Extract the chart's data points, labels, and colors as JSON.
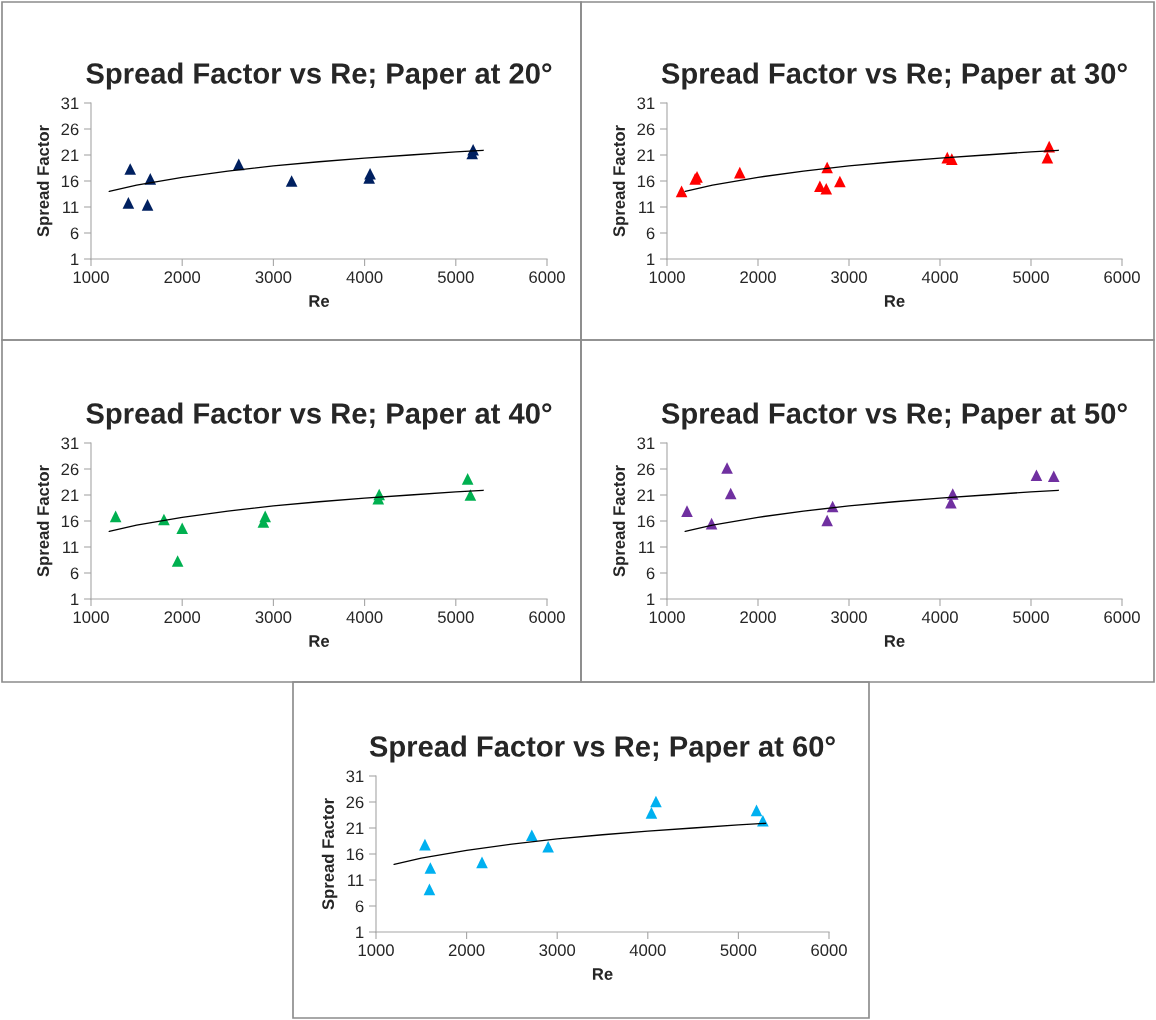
{
  "chart_data": [
    {
      "type": "scatter",
      "title": "Spread Factor vs Re; Paper at 20°",
      "xlabel": "Re",
      "ylabel": "Spread Factor",
      "xlim": [
        1000,
        6000
      ],
      "xticks": [
        1000,
        2000,
        3000,
        4000,
        5000,
        6000
      ],
      "ylim": [
        1,
        31
      ],
      "yticks": [
        1,
        6,
        11,
        16,
        21,
        26,
        31
      ],
      "grid": false,
      "legend": false,
      "marker": "triangle",
      "series": [
        {
          "color": "#002060",
          "x": [
            1410,
            1430,
            1620,
            1650,
            2620,
            3200,
            4050,
            4060,
            5180,
            5190
          ],
          "values": [
            11.8,
            18.3,
            11.4,
            16.4,
            19.2,
            16.0,
            16.6,
            17.4,
            21.3,
            22.0
          ]
        },
        {
          "type": "line",
          "color": "#000000",
          "marker": "none",
          "line_style": "solid",
          "x": [
            1200,
            1500,
            2000,
            2500,
            3000,
            3500,
            4000,
            4500,
            5000,
            5300
          ],
          "values": [
            14.0,
            15.2,
            16.7,
            17.9,
            18.9,
            19.7,
            20.4,
            21.0,
            21.6,
            21.9
          ]
        }
      ]
    },
    {
      "type": "scatter",
      "title": "Spread Factor vs Re; Paper at 30°",
      "xlabel": "Re",
      "ylabel": "Spread Factor",
      "xlim": [
        1000,
        6000
      ],
      "xticks": [
        1000,
        2000,
        3000,
        4000,
        5000,
        6000
      ],
      "ylim": [
        1,
        31
      ],
      "yticks": [
        1,
        6,
        11,
        16,
        21,
        26,
        31
      ],
      "grid": false,
      "legend": false,
      "marker": "triangle",
      "series": [
        {
          "color": "#ff0000",
          "x": [
            1160,
            1310,
            1330,
            1800,
            2680,
            2750,
            2760,
            2900,
            4080,
            4130,
            5180,
            5200
          ],
          "values": [
            14.0,
            16.4,
            16.8,
            17.6,
            15.0,
            14.5,
            18.6,
            15.9,
            20.5,
            20.2,
            20.5,
            22.6
          ]
        },
        {
          "type": "line",
          "color": "#000000",
          "marker": "none",
          "line_style": "solid",
          "x": [
            1200,
            1500,
            2000,
            2500,
            3000,
            3500,
            4000,
            4500,
            5000,
            5300
          ],
          "values": [
            14.0,
            15.2,
            16.7,
            17.9,
            18.9,
            19.7,
            20.4,
            21.0,
            21.6,
            21.9
          ]
        }
      ]
    },
    {
      "type": "scatter",
      "title": "Spread Factor vs Re; Paper at 40°",
      "xlabel": "Re",
      "ylabel": "Spread Factor",
      "xlim": [
        1000,
        6000
      ],
      "xticks": [
        1000,
        2000,
        3000,
        4000,
        5000,
        6000
      ],
      "ylim": [
        1,
        31
      ],
      "yticks": [
        1,
        6,
        11,
        16,
        21,
        26,
        31
      ],
      "grid": false,
      "legend": false,
      "marker": "triangle",
      "series": [
        {
          "color": "#00b050",
          "x": [
            1270,
            1800,
            1950,
            2000,
            2890,
            2910,
            4150,
            4160,
            5130,
            5160
          ],
          "values": [
            16.9,
            16.3,
            8.3,
            14.6,
            15.8,
            16.9,
            20.3,
            21.1,
            24.1,
            21.0
          ]
        },
        {
          "type": "line",
          "color": "#000000",
          "marker": "none",
          "line_style": "solid",
          "x": [
            1200,
            1500,
            2000,
            2500,
            3000,
            3500,
            4000,
            4500,
            5000,
            5300
          ],
          "values": [
            14.0,
            15.2,
            16.7,
            17.9,
            18.9,
            19.7,
            20.4,
            21.0,
            21.6,
            21.9
          ]
        }
      ]
    },
    {
      "type": "scatter",
      "title": "Spread Factor vs Re; Paper at 50°",
      "xlabel": "Re",
      "ylabel": "Spread Factor",
      "xlim": [
        1000,
        6000
      ],
      "xticks": [
        1000,
        2000,
        3000,
        4000,
        5000,
        6000
      ],
      "ylim": [
        1,
        31
      ],
      "yticks": [
        1,
        6,
        11,
        16,
        21,
        26,
        31
      ],
      "grid": false,
      "legend": false,
      "marker": "triangle",
      "series": [
        {
          "color": "#7030a0",
          "x": [
            1220,
            1490,
            1660,
            1700,
            2760,
            2820,
            4120,
            4140,
            5060,
            5250
          ],
          "values": [
            17.9,
            15.5,
            26.2,
            21.3,
            16.1,
            18.8,
            19.5,
            21.2,
            24.8,
            24.6
          ]
        },
        {
          "type": "line",
          "color": "#000000",
          "marker": "none",
          "line_style": "solid",
          "x": [
            1200,
            1500,
            2000,
            2500,
            3000,
            3500,
            4000,
            4500,
            5000,
            5300
          ],
          "values": [
            14.0,
            15.2,
            16.7,
            17.9,
            18.9,
            19.7,
            20.4,
            21.0,
            21.6,
            21.9
          ]
        }
      ]
    },
    {
      "type": "scatter",
      "title": "Spread Factor vs Re; Paper at 60°",
      "xlabel": "Re",
      "ylabel": "Spread Factor",
      "xlim": [
        1000,
        6000
      ],
      "xticks": [
        1000,
        2000,
        3000,
        4000,
        5000,
        6000
      ],
      "ylim": [
        1,
        31
      ],
      "yticks": [
        1,
        6,
        11,
        16,
        21,
        26,
        31
      ],
      "grid": false,
      "legend": false,
      "marker": "triangle",
      "series": [
        {
          "color": "#00b0f0",
          "x": [
            1540,
            1590,
            1600,
            2170,
            2720,
            2900,
            4040,
            4090,
            5200,
            5270
          ],
          "values": [
            17.8,
            9.2,
            13.3,
            14.4,
            19.6,
            17.4,
            23.9,
            26.1,
            24.4,
            22.4
          ]
        },
        {
          "type": "line",
          "color": "#000000",
          "marker": "none",
          "line_style": "solid",
          "x": [
            1200,
            1500,
            2000,
            2500,
            3000,
            3500,
            4000,
            4500,
            5000,
            5300
          ],
          "values": [
            14.0,
            15.2,
            16.7,
            17.9,
            18.9,
            19.7,
            20.4,
            21.0,
            21.6,
            21.9
          ]
        }
      ]
    }
  ]
}
